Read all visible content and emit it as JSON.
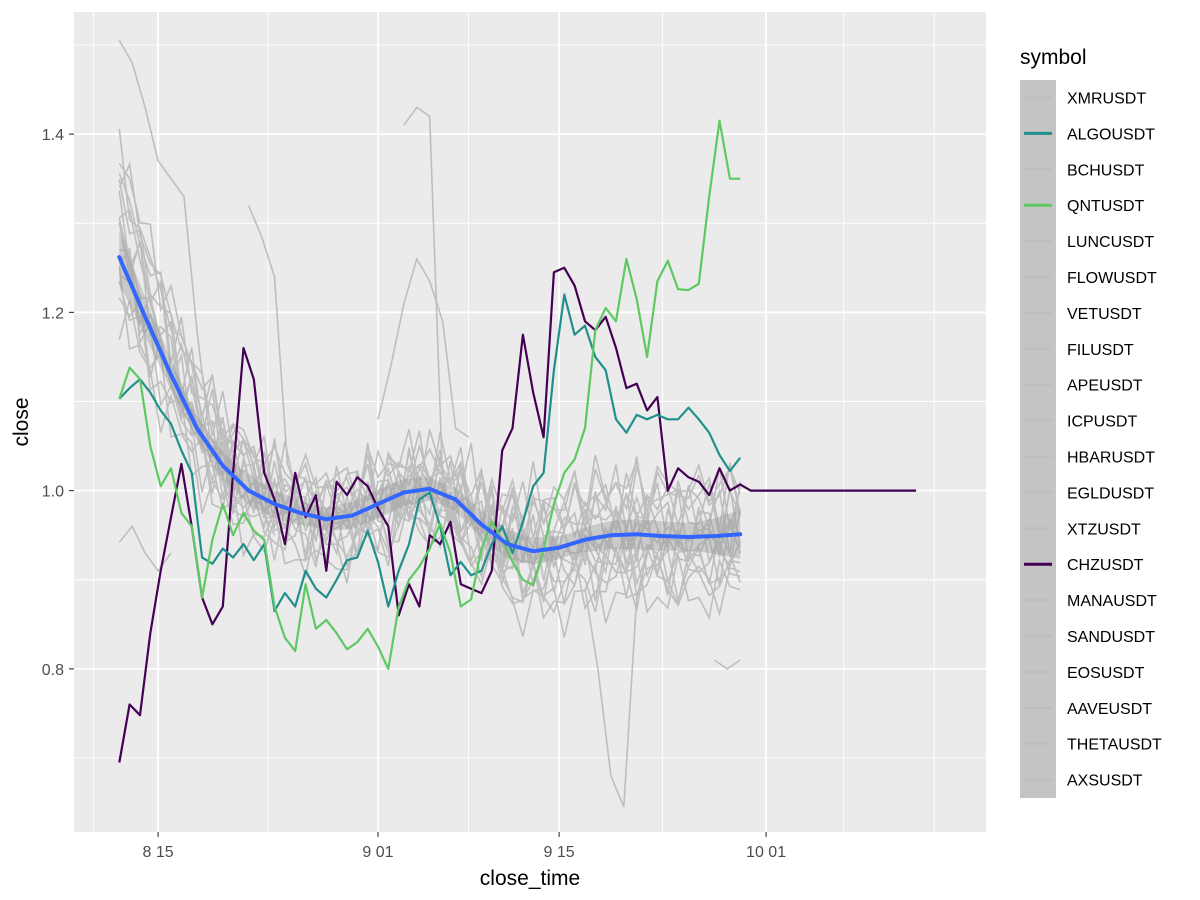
{
  "chart_data": {
    "type": "line",
    "xlabel": "close_time",
    "ylabel": "close",
    "x_ticks": [
      "8 15",
      "9 01",
      "9 15",
      "10 01"
    ],
    "x_tick_positions": [
      17,
      34,
      48,
      64
    ],
    "xlim": [
      10.5,
      81
    ],
    "ylim": [
      0.617,
      1.537
    ],
    "y_ticks": [
      0.8,
      1.0,
      1.2,
      1.4
    ],
    "y_tick_labels": [
      "0.8",
      "1.0",
      "1.2",
      "1.4"
    ],
    "legend": {
      "title": "symbol",
      "entries": [
        {
          "name": "XMRUSDT",
          "color": "#bebebe",
          "highlighted": false
        },
        {
          "name": "ALGOUSDT",
          "color": "#21908c",
          "highlighted": true
        },
        {
          "name": "BCHUSDT",
          "color": "#bebebe",
          "highlighted": false
        },
        {
          "name": "QNTUSDT",
          "color": "#5ec962",
          "highlighted": true
        },
        {
          "name": "LUNCUSDT",
          "color": "#bebebe",
          "highlighted": false
        },
        {
          "name": "FLOWUSDT",
          "color": "#bebebe",
          "highlighted": false
        },
        {
          "name": "VETUSDT",
          "color": "#bebebe",
          "highlighted": false
        },
        {
          "name": "FILUSDT",
          "color": "#bebebe",
          "highlighted": false
        },
        {
          "name": "APEUSDT",
          "color": "#bebebe",
          "highlighted": false
        },
        {
          "name": "ICPUSDT",
          "color": "#bebebe",
          "highlighted": false
        },
        {
          "name": "HBARUSDT",
          "color": "#bebebe",
          "highlighted": false
        },
        {
          "name": "EGLDUSDT",
          "color": "#bebebe",
          "highlighted": false
        },
        {
          "name": "XTZUSDT",
          "color": "#bebebe",
          "highlighted": false
        },
        {
          "name": "CHZUSDT",
          "color": "#440154",
          "highlighted": true
        },
        {
          "name": "MANAUSDT",
          "color": "#bebebe",
          "highlighted": false
        },
        {
          "name": "SANDUSDT",
          "color": "#bebebe",
          "highlighted": false
        },
        {
          "name": "EOSUSDT",
          "color": "#bebebe",
          "highlighted": false
        },
        {
          "name": "AAVEUSDT",
          "color": "#bebebe",
          "highlighted": false
        },
        {
          "name": "THETAUSDT",
          "color": "#bebebe",
          "highlighted": false
        },
        {
          "name": "AXSUSDT",
          "color": "#bebebe",
          "highlighted": false
        }
      ]
    },
    "series": [
      {
        "name": "CHZUSDT",
        "color": "#440154",
        "highlighted": true,
        "x": [
          14,
          14.8,
          15.6,
          16.4,
          17.2,
          18,
          18.8,
          19.6,
          20.4,
          21.2,
          22,
          22.8,
          23.6,
          24.4,
          25.2,
          26,
          26.8,
          27.6,
          28.4,
          29.2,
          30,
          30.8,
          31.6,
          32.4,
          33.2,
          34,
          34.8,
          35.6,
          36.4,
          37.2,
          38,
          38.8,
          39.6,
          40.4,
          41.2,
          42,
          42.8,
          43.6,
          44.4,
          45.2,
          46,
          46.8,
          47.6,
          48.4,
          49.2,
          50,
          50.8,
          51.6,
          52.4,
          53.2,
          54,
          54.8,
          55.6,
          56.4,
          57.2,
          58,
          58.8,
          59.6,
          60.4,
          61.2,
          62,
          62.8,
          63.6,
          64.4,
          65.2,
          66,
          66.8,
          67.6,
          68.4,
          69.2,
          70,
          70.8,
          71.6,
          72.4,
          73.2,
          74,
          74.8,
          75.6
        ],
        "values": [
          0.695,
          0.76,
          0.748,
          0.84,
          0.91,
          0.97,
          1.03,
          0.96,
          0.88,
          0.85,
          0.87,
          1.02,
          1.16,
          1.125,
          1.02,
          0.99,
          0.94,
          1.02,
          0.97,
          0.995,
          0.91,
          1.01,
          0.995,
          1.015,
          1.005,
          0.98,
          0.96,
          0.86,
          0.895,
          0.87,
          0.95,
          0.94,
          0.965,
          0.895,
          0.89,
          0.885,
          0.91,
          1.045,
          1.07,
          1.175,
          1.11,
          1.06,
          1.245,
          1.25,
          1.23,
          1.19,
          1.18,
          1.195,
          1.16,
          1.115,
          1.12,
          1.09,
          1.105,
          1.0,
          1.025,
          1.015,
          1.01,
          0.995,
          1.025,
          1.0,
          1.007,
          1.0,
          1.0,
          1.0,
          1.0,
          1.0,
          1.0,
          1.0,
          1.0,
          1.0,
          1.0,
          1.0,
          1.0,
          1.0,
          1.0,
          1.0,
          1.0,
          1.0
        ]
      },
      {
        "name": "ALGOUSDT",
        "color": "#21908c",
        "highlighted": true,
        "x": [
          14,
          14.8,
          15.6,
          16.4,
          17.2,
          18,
          18.8,
          19.6,
          20.4,
          21.2,
          22,
          22.8,
          23.6,
          24.4,
          25.2,
          26,
          26.8,
          27.6,
          28.4,
          29.2,
          30,
          30.8,
          31.6,
          32.4,
          33.2,
          34,
          34.8,
          35.6,
          36.4,
          37.2,
          38,
          38.8,
          39.6,
          40.4,
          41.2,
          42,
          42.8,
          43.6,
          44.4,
          45.2,
          46,
          46.8,
          47.6,
          48.4,
          49.2,
          50,
          50.8,
          51.6,
          52.4,
          53.2,
          54,
          54.8,
          55.6,
          56.4,
          57.2,
          58,
          58.8,
          59.6,
          60.4,
          61.2,
          62
        ],
        "values": [
          1.103,
          1.115,
          1.125,
          1.11,
          1.09,
          1.075,
          1.045,
          1.02,
          0.925,
          0.918,
          0.935,
          0.925,
          0.94,
          0.922,
          0.94,
          0.865,
          0.885,
          0.87,
          0.91,
          0.89,
          0.88,
          0.9,
          0.922,
          0.925,
          0.955,
          0.92,
          0.87,
          0.91,
          0.94,
          0.99,
          0.998,
          0.96,
          0.905,
          0.92,
          0.905,
          0.91,
          0.94,
          0.96,
          0.93,
          0.965,
          1.005,
          1.02,
          1.135,
          1.22,
          1.175,
          1.185,
          1.15,
          1.135,
          1.08,
          1.065,
          1.085,
          1.08,
          1.085,
          1.08,
          1.08,
          1.093,
          1.08,
          1.065,
          1.04,
          1.022,
          1.037
        ]
      },
      {
        "name": "QNTUSDT",
        "color": "#5ec962",
        "highlighted": true,
        "x": [
          14,
          14.8,
          15.6,
          16.4,
          17.2,
          18,
          18.8,
          19.6,
          20.4,
          21.2,
          22,
          22.8,
          23.6,
          24.4,
          25.2,
          26,
          26.8,
          27.6,
          28.4,
          29.2,
          30,
          30.8,
          31.6,
          32.4,
          33.2,
          34,
          34.8,
          35.6,
          36.4,
          37.2,
          38,
          38.8,
          39.6,
          40.4,
          41.2,
          42,
          42.8,
          43.6,
          44.4,
          45.2,
          46,
          46.8,
          47.6,
          48.4,
          49.2,
          50,
          50.8,
          51.6,
          52.4,
          53.2,
          54,
          54.8,
          55.6,
          56.4,
          57.2,
          58,
          58.8,
          59.6,
          60.4,
          61.2,
          62
        ],
        "values": [
          1.103,
          1.138,
          1.125,
          1.05,
          1.005,
          1.025,
          0.975,
          0.96,
          0.88,
          0.945,
          0.985,
          0.95,
          0.975,
          0.955,
          0.945,
          0.87,
          0.835,
          0.82,
          0.895,
          0.845,
          0.855,
          0.84,
          0.822,
          0.83,
          0.845,
          0.825,
          0.8,
          0.87,
          0.9,
          0.915,
          0.935,
          0.963,
          0.93,
          0.87,
          0.878,
          0.935,
          0.965,
          0.945,
          0.92,
          0.9,
          0.894,
          0.935,
          0.985,
          1.02,
          1.035,
          1.07,
          1.18,
          1.205,
          1.19,
          1.26,
          1.215,
          1.15,
          1.235,
          1.258,
          1.226,
          1.225,
          1.232,
          1.33,
          1.415,
          1.35,
          1.35
        ]
      }
    ]
  },
  "grey_seeds": [
    0.11,
    0.83,
    0.37,
    0.59,
    0.22,
    0.71,
    0.48,
    0.93,
    0.15,
    0.66,
    0.29,
    0.78,
    0.04,
    0.52,
    0.41,
    0.87,
    0.33
  ]
}
